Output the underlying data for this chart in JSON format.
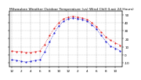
{
  "title": "Milwaukee Weather Outdoor Temperature (vs) Wind Chill (Last 24 Hours)",
  "temp_color": "#dd0000",
  "wind_chill_color": "#0000cc",
  "background_color": "#ffffff",
  "grid_color": "#888888",
  "hours": [
    0,
    1,
    2,
    3,
    4,
    5,
    6,
    7,
    8,
    9,
    10,
    11,
    12,
    13,
    14,
    15,
    16,
    17,
    18,
    19,
    20,
    21,
    22,
    23
  ],
  "temperature": [
    5,
    4,
    4,
    3,
    3,
    4,
    5,
    13,
    24,
    33,
    40,
    45,
    47,
    48,
    47,
    46,
    44,
    40,
    35,
    28,
    22,
    18,
    15,
    12
  ],
  "wind_chill": [
    -6,
    -7,
    -8,
    -9,
    -8,
    -7,
    -6,
    4,
    16,
    27,
    36,
    42,
    45,
    46,
    45,
    44,
    42,
    37,
    32,
    24,
    16,
    11,
    8,
    5
  ],
  "ylim": [
    -15,
    55
  ],
  "yticks_right": [
    -10,
    0,
    10,
    20,
    30,
    40,
    50
  ],
  "ytick_labels_right": [
    "-10",
    "0",
    "10",
    "20",
    "30",
    "40",
    "50"
  ],
  "xtick_positions": [
    0,
    2,
    4,
    6,
    8,
    10,
    12,
    14,
    16,
    18,
    20,
    22
  ],
  "xtick_labels": [
    "12",
    "2",
    "4",
    "6",
    "8",
    "10",
    "12",
    "2",
    "4",
    "6",
    "8",
    "10"
  ],
  "tick_fontsize": 3.0,
  "title_fontsize": 3.2,
  "line_width": 0.5,
  "marker_size": 1.0
}
